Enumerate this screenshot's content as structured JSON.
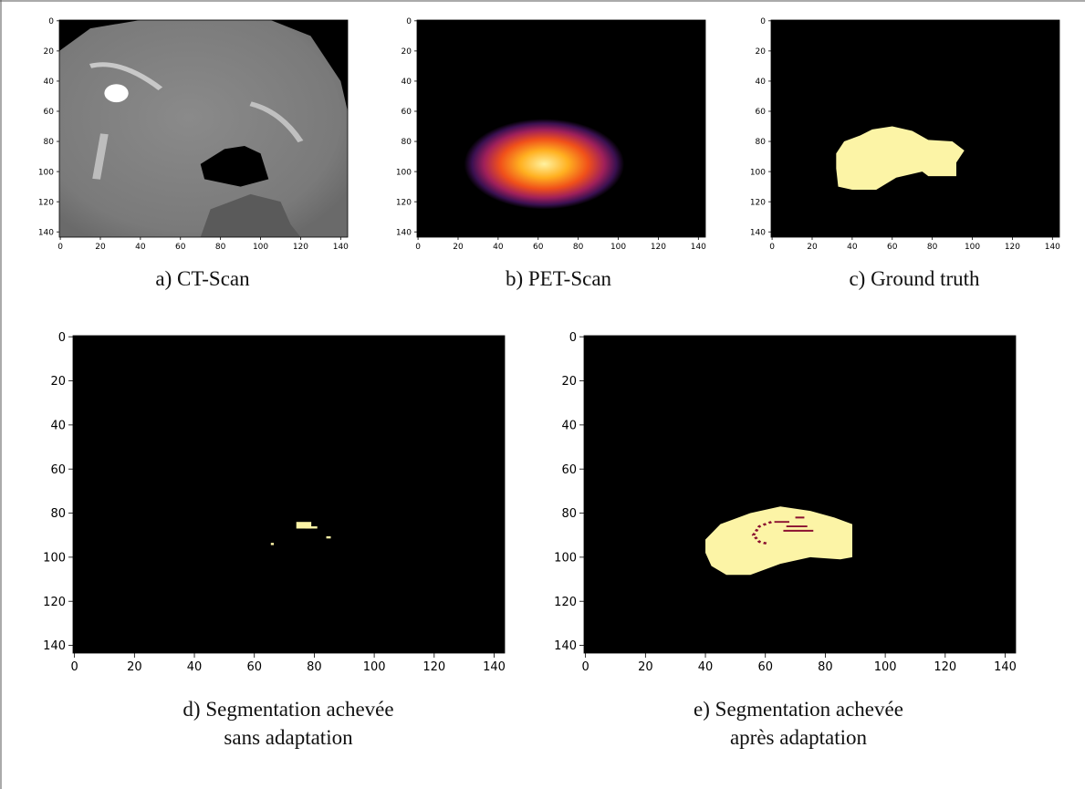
{
  "panels": [
    {
      "caption": [
        "a) CT-Scan"
      ],
      "xlim": [
        -0.5,
        143.5
      ],
      "ylim": [
        143.5,
        -0.5
      ],
      "xticks": [
        0,
        20,
        40,
        60,
        80,
        100,
        120,
        140
      ],
      "yticks": [
        0,
        20,
        40,
        60,
        80,
        100,
        120,
        140
      ]
    },
    {
      "caption": [
        "b) PET-Scan"
      ],
      "xlim": [
        -0.5,
        143.5
      ],
      "ylim": [
        143.5,
        -0.5
      ],
      "xticks": [
        0,
        20,
        40,
        60,
        80,
        100,
        120,
        140
      ],
      "yticks": [
        0,
        20,
        40,
        60,
        80,
        100,
        120,
        140
      ]
    },
    {
      "caption": [
        "c) Ground truth"
      ],
      "xlim": [
        -0.5,
        143.5
      ],
      "ylim": [
        143.5,
        -0.5
      ],
      "xticks": [
        0,
        20,
        40,
        60,
        80,
        100,
        120,
        140
      ],
      "yticks": [
        0,
        20,
        40,
        60,
        80,
        100,
        120,
        140
      ]
    },
    {
      "caption": [
        "d) Segmentation achevée",
        "sans adaptation"
      ],
      "xlim": [
        -0.5,
        143.5
      ],
      "ylim": [
        143.5,
        -0.5
      ],
      "xticks": [
        0,
        20,
        40,
        60,
        80,
        100,
        120,
        140
      ],
      "yticks": [
        0,
        20,
        40,
        60,
        80,
        100,
        120,
        140
      ]
    },
    {
      "caption": [
        "e) Segmentation achevée",
        "après adaptation"
      ],
      "xlim": [
        -0.5,
        143.5
      ],
      "ylim": [
        143.5,
        -0.5
      ],
      "xticks": [
        0,
        20,
        40,
        60,
        80,
        100,
        120,
        140
      ],
      "yticks": [
        0,
        20,
        40,
        60,
        80,
        100,
        120,
        140
      ]
    }
  ]
}
